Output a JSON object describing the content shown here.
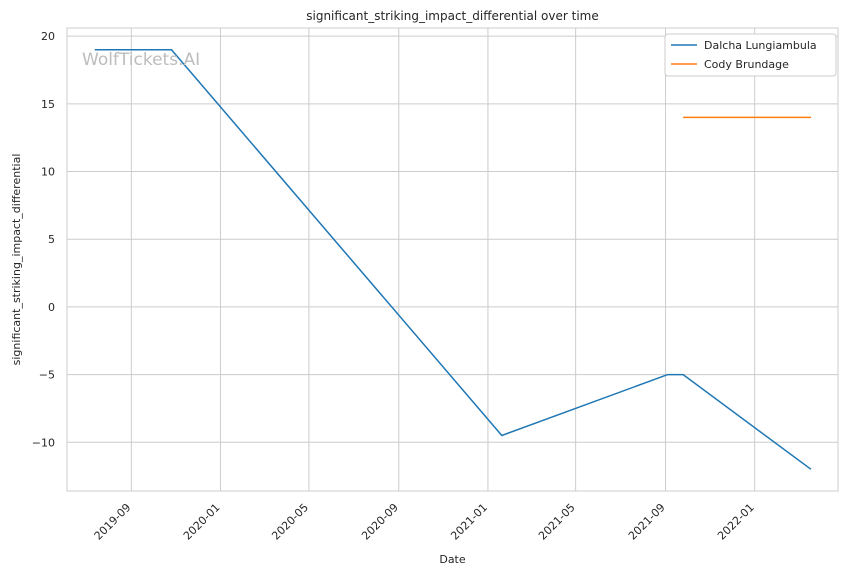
{
  "chart_data": {
    "type": "line",
    "title": "significant_striking_impact_differential over time",
    "xlabel": "Date",
    "ylabel": "significant_striking_impact_differential",
    "watermark": "WolfTickets.AI",
    "x_scale": "date",
    "xlim": [
      "2019-06-05",
      "2022-04-25"
    ],
    "ylim": [
      -13.6,
      20.6
    ],
    "x_ticks": [
      {
        "date": "2019-09-01",
        "label": "2019-09"
      },
      {
        "date": "2020-01-01",
        "label": "2020-01"
      },
      {
        "date": "2020-05-01",
        "label": "2020-05"
      },
      {
        "date": "2020-09-01",
        "label": "2020-09"
      },
      {
        "date": "2021-01-01",
        "label": "2021-01"
      },
      {
        "date": "2021-05-01",
        "label": "2021-05"
      },
      {
        "date": "2021-09-01",
        "label": "2021-09"
      },
      {
        "date": "2022-01-01",
        "label": "2022-01"
      }
    ],
    "y_ticks": [
      20,
      15,
      10,
      5,
      0,
      -5,
      -10
    ],
    "grid": true,
    "legend_position": "top-right",
    "series": [
      {
        "name": "Dalcha Lungiambula",
        "color": "#1f77b4",
        "points": [
          {
            "x": "2019-07-13",
            "y": 19
          },
          {
            "x": "2019-10-26",
            "y": 19
          },
          {
            "x": "2021-01-20",
            "y": -9.5
          },
          {
            "x": "2021-09-04",
            "y": -5
          },
          {
            "x": "2021-09-25",
            "y": -5
          },
          {
            "x": "2022-03-19",
            "y": -12
          }
        ]
      },
      {
        "name": "Cody Brundage",
        "color": "#ff7f0e",
        "points": [
          {
            "x": "2021-09-25",
            "y": 14
          },
          {
            "x": "2022-03-19",
            "y": 14
          }
        ]
      }
    ]
  }
}
